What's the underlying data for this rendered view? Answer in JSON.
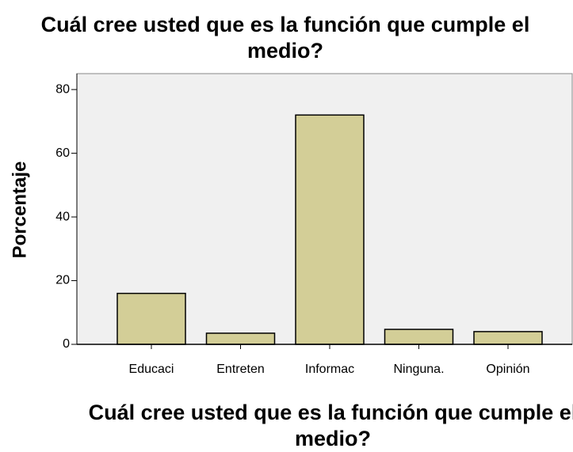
{
  "chart_data": {
    "type": "bar",
    "title": "Cuál cree usted que es la función que cumple el medio?",
    "x_label": "Cuál cree usted que es la función que cumple el medio?",
    "y_label": "Porcentaje",
    "categories": [
      "Educaci",
      "Entreten",
      "Informac",
      "Ninguna.",
      "Opinión"
    ],
    "values": [
      16,
      3.5,
      72,
      4.7,
      4
    ],
    "color": "#d3ce97",
    "ylim": [
      0,
      85
    ],
    "yticks": [
      0,
      20,
      40,
      60,
      80
    ],
    "grid": false
  }
}
